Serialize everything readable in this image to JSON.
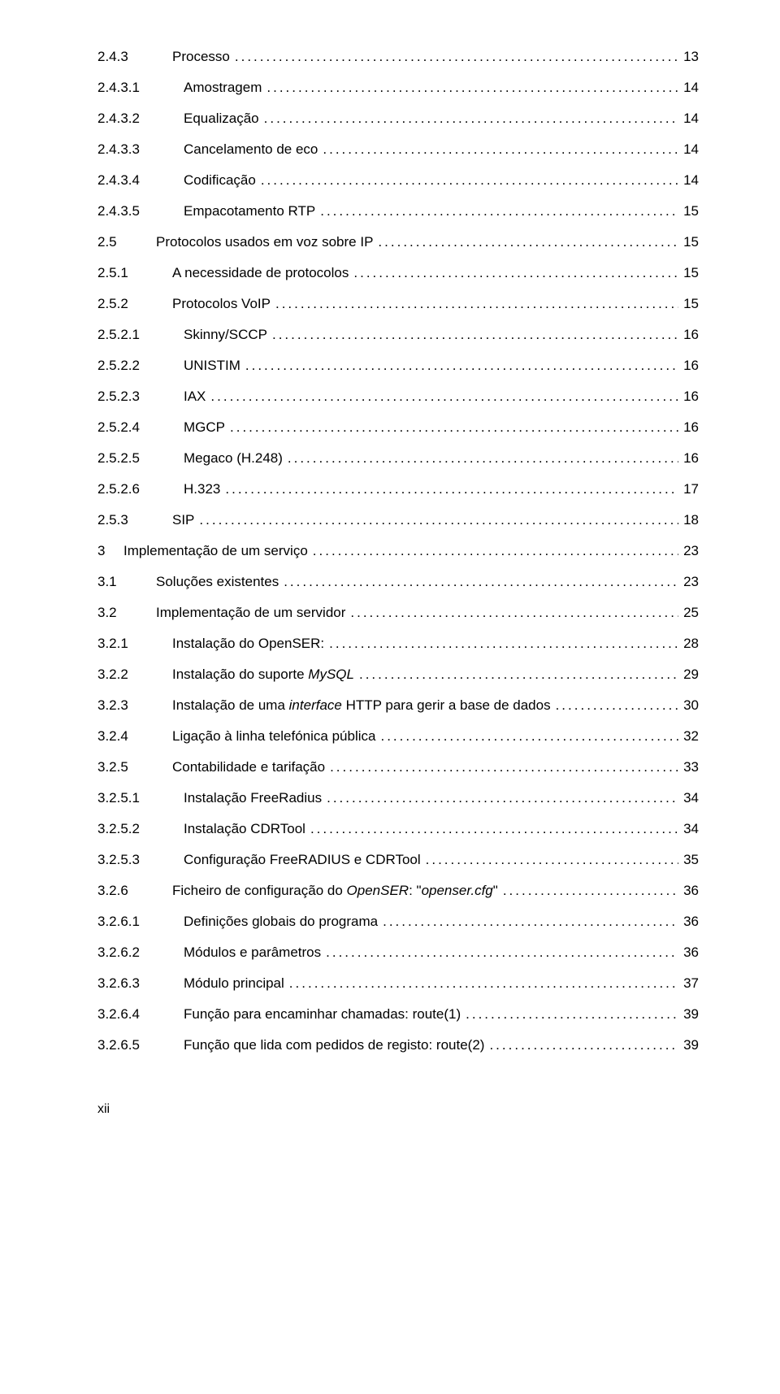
{
  "toc": [
    {
      "level": 3,
      "num": "2.4.3",
      "title": "Processo",
      "page": "13"
    },
    {
      "level": 4,
      "num": "2.4.3.1",
      "title": "Amostragem",
      "page": "14"
    },
    {
      "level": 4,
      "num": "2.4.3.2",
      "title": "Equalização",
      "page": "14"
    },
    {
      "level": 4,
      "num": "2.4.3.3",
      "title": "Cancelamento de eco",
      "page": "14"
    },
    {
      "level": 4,
      "num": "2.4.3.4",
      "title": "Codificação",
      "page": "14"
    },
    {
      "level": 4,
      "num": "2.4.3.5",
      "title": "Empacotamento RTP",
      "page": "15"
    },
    {
      "level": 2,
      "num": "2.5",
      "title": "Protocolos usados em voz sobre IP",
      "page": "15"
    },
    {
      "level": 3,
      "num": "2.5.1",
      "title": "A necessidade de protocolos",
      "page": "15"
    },
    {
      "level": 3,
      "num": "2.5.2",
      "title": "Protocolos VoIP",
      "page": "15"
    },
    {
      "level": 4,
      "num": "2.5.2.1",
      "title": "Skinny/SCCP",
      "page": "16"
    },
    {
      "level": 4,
      "num": "2.5.2.2",
      "title": "UNISTIM",
      "page": "16"
    },
    {
      "level": 4,
      "num": "2.5.2.3",
      "title": "IAX",
      "page": "16"
    },
    {
      "level": 4,
      "num": "2.5.2.4",
      "title": "MGCP",
      "page": "16"
    },
    {
      "level": 4,
      "num": "2.5.2.5",
      "title": "Megaco (H.248)",
      "page": "16"
    },
    {
      "level": 4,
      "num": "2.5.2.6",
      "title": "H.323",
      "page": "17"
    },
    {
      "level": 3,
      "num": "2.5.3",
      "title": "SIP",
      "page": "18"
    },
    {
      "level": 1,
      "num": "3",
      "title": "Implementação de um serviço",
      "page": "23"
    },
    {
      "level": 2,
      "num": "3.1",
      "title": "Soluções existentes",
      "page": "23"
    },
    {
      "level": 2,
      "num": "3.2",
      "title": "Implementação de um servidor",
      "page": "25"
    },
    {
      "level": 3,
      "num": "3.2.1",
      "title": "Instalação do OpenSER:",
      "page": "28"
    },
    {
      "level": 3,
      "num": "3.2.2",
      "title_html": "Instalação do suporte <span class=\"italic\">MySQL</span>",
      "page": "29"
    },
    {
      "level": 3,
      "num": "3.2.3",
      "title_html": "Instalação de uma <span class=\"italic\">interface</span> HTTP para gerir a base de dados",
      "page": "30"
    },
    {
      "level": 3,
      "num": "3.2.4",
      "title": "Ligação à linha telefónica pública",
      "page": "32"
    },
    {
      "level": 3,
      "num": "3.2.5",
      "title": "Contabilidade e tarifação",
      "page": "33"
    },
    {
      "level": 4,
      "num": "3.2.5.1",
      "title": "Instalação FreeRadius",
      "page": "34"
    },
    {
      "level": 4,
      "num": "3.2.5.2",
      "title": "Instalação CDRTool",
      "page": "34"
    },
    {
      "level": 4,
      "num": "3.2.5.3",
      "title": "Configuração FreeRADIUS e CDRTool",
      "page": "35"
    },
    {
      "level": 3,
      "num": "3.2.6",
      "title_html": "Ficheiro de configuração do <span class=\"italic\">OpenSER</span>: \"<span class=\"italic\">openser.cfg</span>\"",
      "page": "36"
    },
    {
      "level": 4,
      "num": "3.2.6.1",
      "title": "Definições globais do programa",
      "page": "36"
    },
    {
      "level": 4,
      "num": "3.2.6.2",
      "title": "Módulos e parâmetros",
      "page": "36"
    },
    {
      "level": 4,
      "num": "3.2.6.3",
      "title": "Módulo principal",
      "page": "37"
    },
    {
      "level": 4,
      "num": "3.2.6.4",
      "title": "Função para encaminhar chamadas: route(1)",
      "page": "39"
    },
    {
      "level": 4,
      "num": "3.2.6.5",
      "title": "Função que lida com pedidos de registo: route(2)",
      "page": "39"
    }
  ],
  "footer": "xii"
}
